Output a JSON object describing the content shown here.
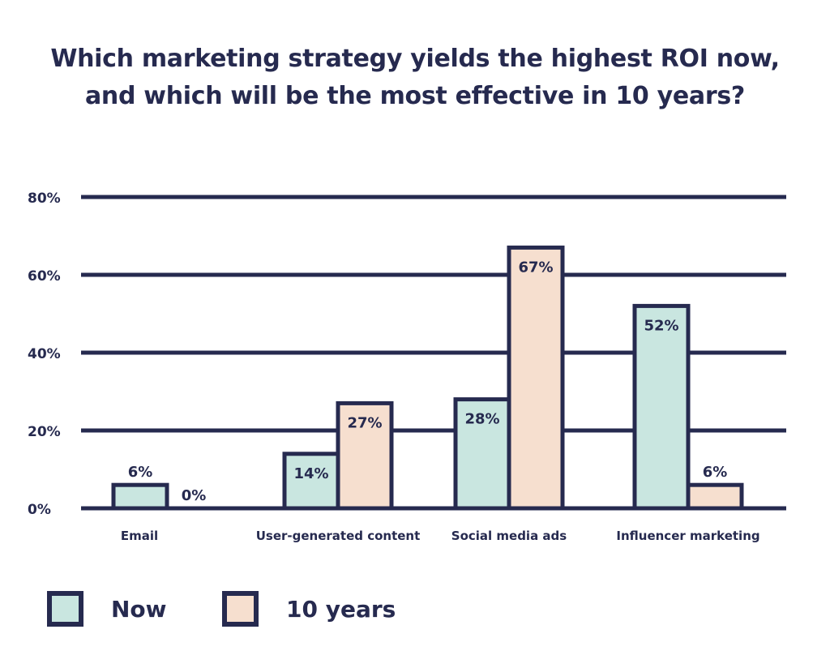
{
  "title_line1": "Which marketing strategy yields the highest ROI now,",
  "title_line2": "and which will be the most effective in 10 years?",
  "colors": {
    "ink": "#262a4f",
    "now": "#c9e6e0",
    "ten_years": "#f6dfcf"
  },
  "chart_data": {
    "type": "bar",
    "title": "Which marketing strategy yields the highest ROI now, and which will be the most effective in 10 years?",
    "categories": [
      "Email",
      "User-generated content",
      "Social media ads",
      "Influencer marketing"
    ],
    "series": [
      {
        "name": "Now",
        "values": [
          6,
          14,
          28,
          52
        ],
        "labels": [
          "6%",
          "14%",
          "28%",
          "52%"
        ]
      },
      {
        "name": "10 years",
        "values": [
          0,
          27,
          67,
          6
        ],
        "labels": [
          "0%",
          "27%",
          "67%",
          "6%"
        ]
      }
    ],
    "yticks": [
      "0%",
      "20%",
      "40%",
      "60%",
      "80%"
    ],
    "ylim": [
      0,
      80
    ],
    "grid": true,
    "legend": "bottom-left"
  }
}
